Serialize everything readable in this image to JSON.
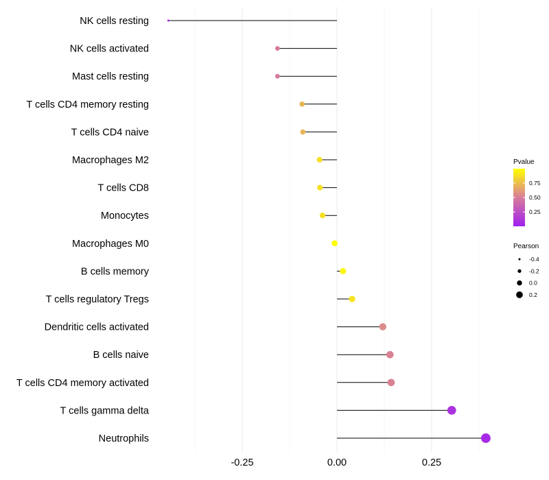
{
  "chart_data": {
    "type": "lollipop",
    "title": "",
    "xlabel": "",
    "ylabel": "",
    "xlim": [
      -0.5,
      0.42
    ],
    "x_ticks": [
      -0.25,
      0.0,
      0.25
    ],
    "x_tick_labels": [
      "-0.25",
      "0.00",
      "0.25"
    ],
    "grid": true,
    "categories": [
      "NK cells resting",
      "NK cells activated",
      "Mast cells resting",
      "T cells CD4 memory resting",
      "T cells CD4 naive",
      "Macrophages M2",
      "T cells CD8",
      "Monocytes",
      "Macrophages M0",
      "B cells memory",
      "T cells regulatory  Tregs",
      "Dendritic cells activated",
      "B cells naive",
      "T cells CD4 memory activated",
      "T cells gamma delta",
      "Neutrophils"
    ],
    "pearson": [
      -0.445,
      -0.157,
      -0.157,
      -0.092,
      -0.09,
      -0.046,
      -0.045,
      -0.038,
      -0.006,
      0.016,
      0.04,
      0.121,
      0.14,
      0.143,
      0.303,
      0.393
    ],
    "pvalue": [
      0.02,
      0.48,
      0.48,
      0.72,
      0.72,
      0.88,
      0.88,
      0.88,
      1.0,
      0.96,
      0.9,
      0.55,
      0.52,
      0.52,
      0.1,
      0.06
    ],
    "legend": {
      "color_title": "Pvalue",
      "color_ticks": [
        0.25,
        0.5,
        0.75
      ],
      "color_tick_labels": [
        "0.25",
        "0.50",
        "0.75"
      ],
      "color_range": [
        0.0,
        1.0
      ],
      "color_low": "#a020f0",
      "color_mid": "#d87d9a",
      "color_high": "#ffff00",
      "size_title": "Pearson",
      "size_values": [
        -0.4,
        -0.2,
        0.0,
        0.2
      ],
      "size_labels": [
        "-0.4",
        "-0.2",
        "0.0",
        "0.2"
      ],
      "position": "right"
    }
  }
}
